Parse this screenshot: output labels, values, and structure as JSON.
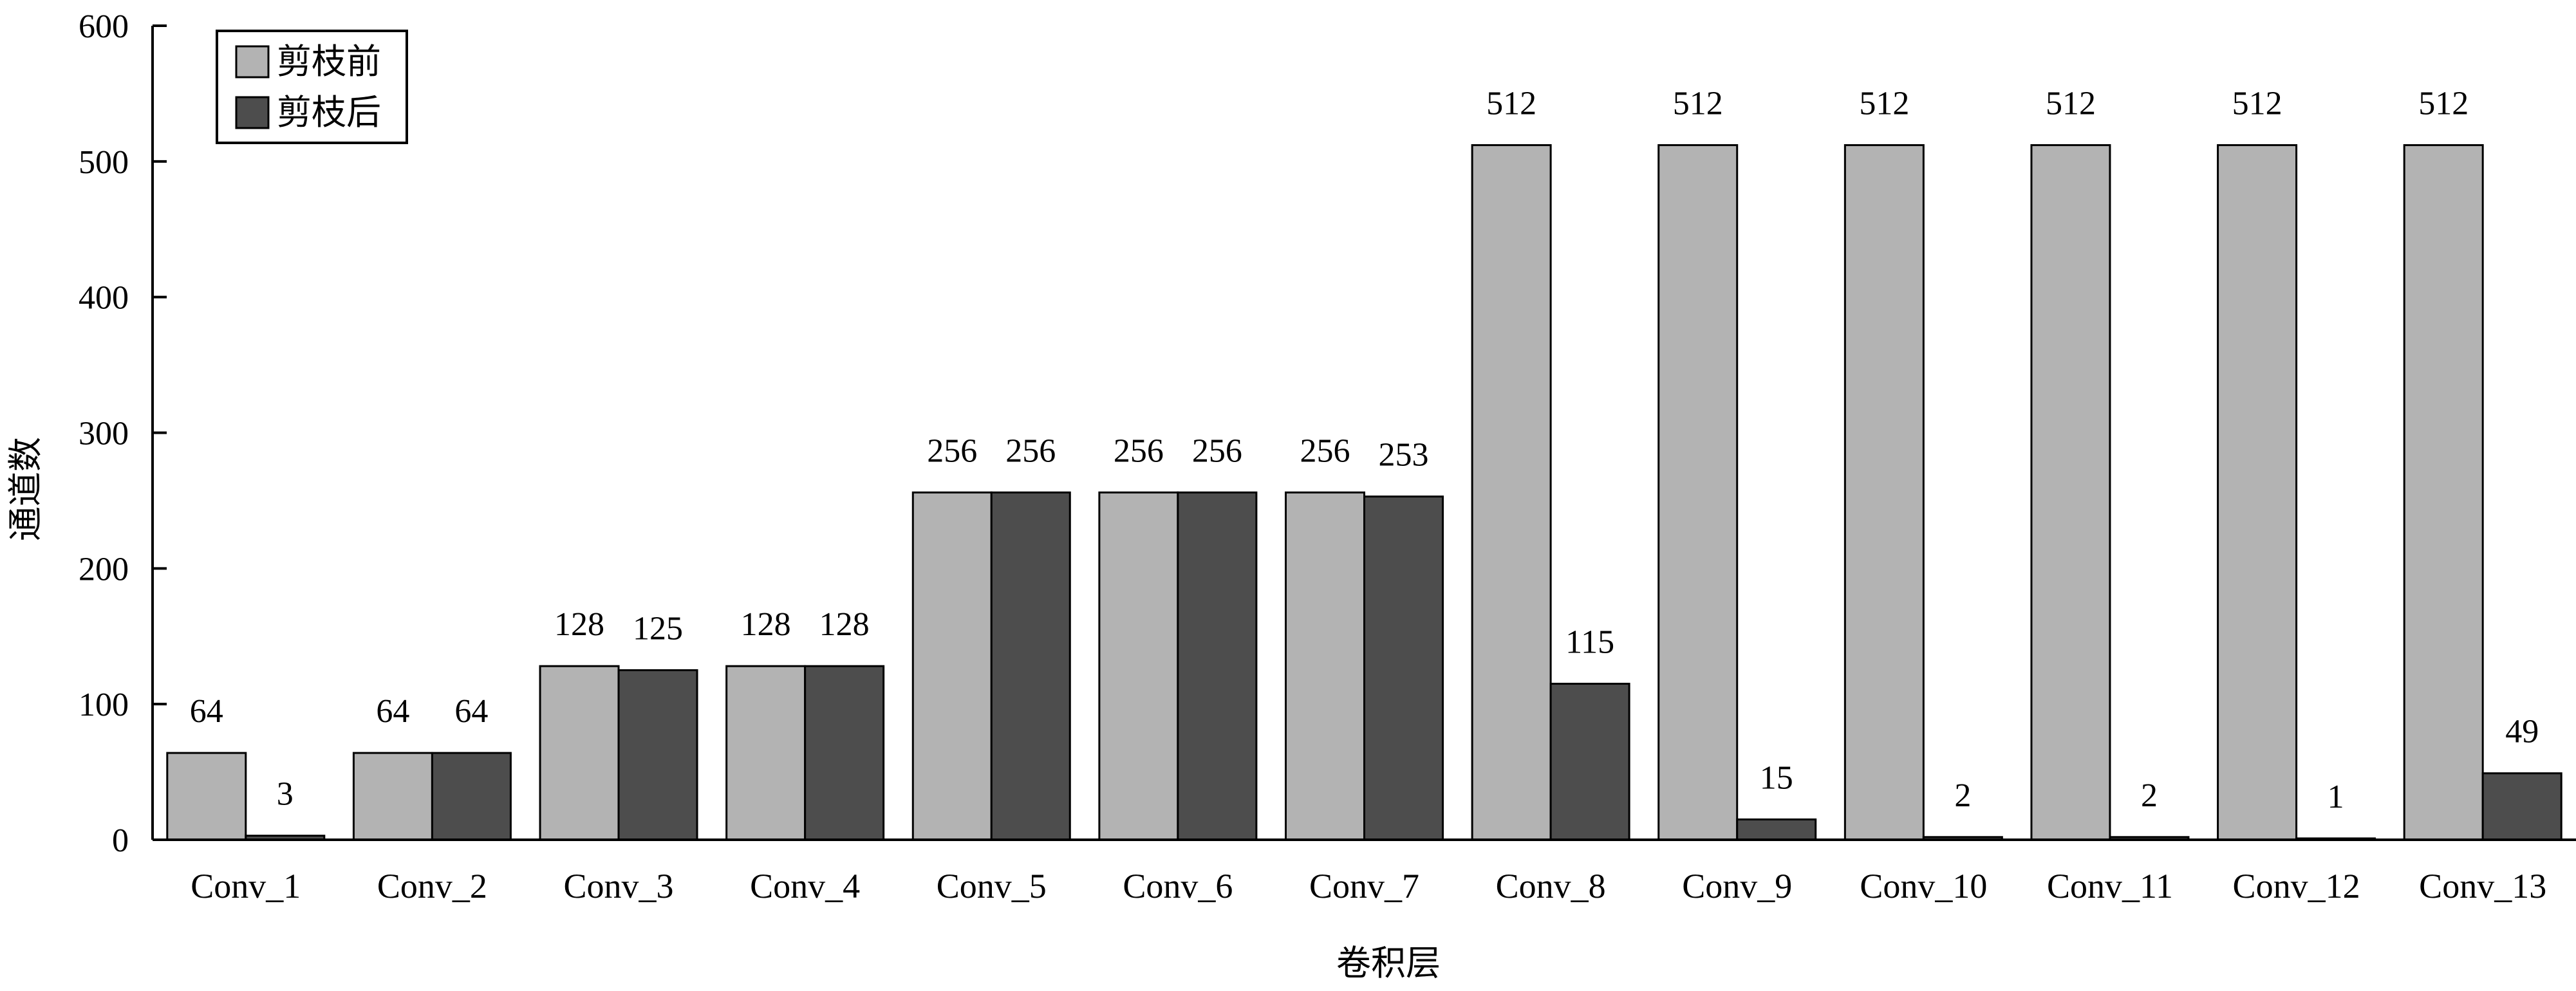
{
  "chart_data": {
    "type": "bar",
    "title": "",
    "xlabel": "卷积层",
    "ylabel": "通道数",
    "ylim": [
      0,
      600
    ],
    "yticks": [
      0,
      100,
      200,
      300,
      400,
      500,
      600
    ],
    "grid": false,
    "legend_position": "top-left",
    "categories": [
      "Conv_1",
      "Conv_2",
      "Conv_3",
      "Conv_4",
      "Conv_5",
      "Conv_6",
      "Conv_7",
      "Conv_8",
      "Conv_9",
      "Conv_10",
      "Conv_11",
      "Conv_12",
      "Conv_13"
    ],
    "series": [
      {
        "name": "剪枝前",
        "color": "#b3b3b3",
        "values": [
          64,
          64,
          128,
          128,
          256,
          256,
          256,
          512,
          512,
          512,
          512,
          512,
          512
        ]
      },
      {
        "name": "剪枝后",
        "color": "#4d4d4d",
        "values": [
          3,
          64,
          125,
          128,
          256,
          256,
          253,
          115,
          15,
          2,
          2,
          1,
          49
        ]
      }
    ]
  }
}
